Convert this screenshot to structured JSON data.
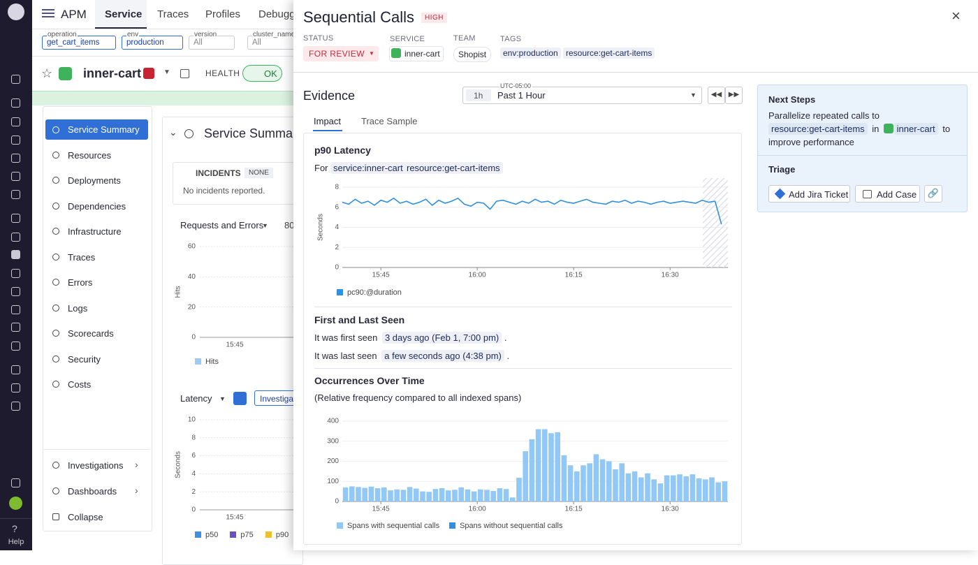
{
  "nav": {
    "help": "Help"
  },
  "topbar": {
    "product": "APM",
    "tabs": [
      "Service",
      "Traces",
      "Profiles",
      "Debugg"
    ]
  },
  "filters": [
    {
      "label": "operation",
      "value": "get_cart_items"
    },
    {
      "label": "env",
      "value": "production"
    },
    {
      "label": "version",
      "value": "All"
    },
    {
      "label": "cluster_name",
      "value": "All"
    }
  ],
  "service_header": {
    "name": "inner-cart",
    "health_label": "HEALTH",
    "health": "OK"
  },
  "side_menu": {
    "items": [
      "Service Summary",
      "Resources",
      "Deployments",
      "Dependencies",
      "Infrastructure",
      "Traces",
      "Errors",
      "Logs",
      "Scorecards",
      "Security",
      "Costs"
    ],
    "bottom": [
      "Investigations",
      "Dashboards",
      "Collapse"
    ]
  },
  "summary": {
    "title": "Service Summary",
    "incidents": {
      "label": "INCIDENTS",
      "badge": "NONE",
      "text": "No incidents reported."
    },
    "requests": {
      "selector": "Requests and Errors",
      "extra": "80",
      "y_label": "Hits",
      "ylim": [
        0,
        60
      ],
      "yticks": [
        0,
        20,
        40,
        60
      ],
      "xtick": "15:45",
      "legend": [
        {
          "name": "Hits",
          "color": "#9ccbf6"
        }
      ]
    },
    "latency": {
      "selector": "Latency",
      "button": "Investigat",
      "y_label": "Seconds",
      "ylim": [
        0,
        10
      ],
      "yticks": [
        0,
        2,
        4,
        6,
        8,
        10
      ],
      "xtick": "15:45",
      "legend": [
        {
          "name": "p50",
          "color": "#3d8fe0"
        },
        {
          "name": "p75",
          "color": "#6a4fc8"
        },
        {
          "name": "p90",
          "color": "#eec12c"
        }
      ]
    }
  },
  "panel": {
    "title": "Sequential Calls",
    "severity": "HIGH",
    "fields": {
      "status_label": "STATUS",
      "status": "FOR REVIEW",
      "service_label": "SERVICE",
      "service": "inner-cart",
      "team_label": "TEAM",
      "team": "Shopist",
      "tags_label": "TAGS",
      "tags": [
        "env:production",
        "resource:get-cart-items"
      ]
    },
    "evidence": {
      "title": "Evidence",
      "timezone": "UTC-05:00",
      "range_short": "1h",
      "range": "Past 1 Hour",
      "tabs": [
        "Impact",
        "Trace Sample"
      ]
    },
    "latency": {
      "title": "p90 Latency",
      "for": "For",
      "filters": [
        "service:inner-cart",
        "resource:get-cart-items"
      ],
      "chart": {
        "type": "line",
        "y_label": "Seconds",
        "x": [
          "15:39",
          "15:40",
          "15:41",
          "15:42",
          "15:43",
          "15:44",
          "15:45",
          "15:46",
          "15:47",
          "15:48",
          "15:49",
          "15:50",
          "15:51",
          "15:52",
          "15:53",
          "15:54",
          "15:55",
          "15:56",
          "15:57",
          "15:58",
          "15:59",
          "16:00",
          "16:01",
          "16:02",
          "16:03",
          "16:04",
          "16:05",
          "16:06",
          "16:07",
          "16:08",
          "16:09",
          "16:10",
          "16:11",
          "16:12",
          "16:13",
          "16:14",
          "16:15",
          "16:16",
          "16:17",
          "16:18",
          "16:19",
          "16:20",
          "16:21",
          "16:22",
          "16:23",
          "16:24",
          "16:25",
          "16:26",
          "16:27",
          "16:28",
          "16:29",
          "16:30",
          "16:31",
          "16:32",
          "16:33",
          "16:34",
          "16:35",
          "16:36",
          "16:37",
          "16:38"
        ],
        "series": [
          {
            "name": "pc90:@duration",
            "color": "#2f8fe0",
            "values": [
              6.5,
              6.3,
              6.8,
              6.4,
              6.6,
              6.2,
              6.7,
              6.5,
              6.9,
              6.4,
              6.6,
              6.3,
              6.5,
              6.8,
              6.2,
              6.7,
              6.4,
              6.6,
              6.9,
              6.3,
              6.1,
              6.5,
              6.4,
              5.8,
              6.6,
              6.7,
              6.5,
              6.3,
              6.6,
              6.4,
              6.8,
              6.5,
              6.6,
              6.3,
              6.7,
              6.5,
              6.4,
              6.6,
              6.8,
              6.5,
              6.4,
              6.3,
              6.6,
              6.5,
              6.7,
              6.4,
              6.6,
              6.5,
              6.3,
              6.5,
              6.6,
              6.4,
              6.5,
              6.6,
              6.5,
              6.4,
              6.7,
              6.5,
              6.6,
              4.3
            ]
          }
        ],
        "xlim": [
          "15:39",
          "16:39"
        ],
        "xticks": [
          "15:45",
          "16:00",
          "16:15",
          "16:30"
        ],
        "ylim": [
          0,
          8
        ],
        "yticks": [
          0,
          2,
          4,
          6,
          8
        ],
        "grid": true
      }
    },
    "seen": {
      "title": "First and Last Seen",
      "first_prefix": "It was first seen",
      "first": "3 days ago (Feb 1, 7:00 pm)",
      "last_prefix": "It was last seen",
      "last": "a few seconds ago (4:38 pm)",
      "end": "."
    },
    "occurrences": {
      "title": "Occurrences Over Time",
      "subtitle": "(Relative frequency compared to all indexed spans)",
      "chart": {
        "type": "bar",
        "stacked": true,
        "x": [
          "15:39",
          "15:40",
          "15:41",
          "15:42",
          "15:43",
          "15:44",
          "15:45",
          "15:46",
          "15:47",
          "15:48",
          "15:49",
          "15:50",
          "15:51",
          "15:52",
          "15:53",
          "15:54",
          "15:55",
          "15:56",
          "15:57",
          "15:58",
          "15:59",
          "16:00",
          "16:01",
          "16:02",
          "16:03",
          "16:04",
          "16:05",
          "16:06",
          "16:07",
          "16:08",
          "16:09",
          "16:10",
          "16:11",
          "16:12",
          "16:13",
          "16:14",
          "16:15",
          "16:16",
          "16:17",
          "16:18",
          "16:19",
          "16:20",
          "16:21",
          "16:22",
          "16:23",
          "16:24",
          "16:25",
          "16:26",
          "16:27",
          "16:28",
          "16:29",
          "16:30",
          "16:31",
          "16:32",
          "16:33",
          "16:34",
          "16:35",
          "16:36",
          "16:37",
          "16:38"
        ],
        "series": [
          {
            "name": "Spans with sequential calls",
            "color": "#92c8f5",
            "values": [
              70,
              75,
              72,
              68,
              74,
              66,
              70,
              55,
              60,
              58,
              72,
              64,
              50,
              48,
              62,
              66,
              55,
              58,
              70,
              60,
              50,
              60,
              58,
              52,
              66,
              62,
              20,
              118,
              250,
              310,
              360,
              360,
              340,
              345,
              230,
              180,
              150,
              180,
              190,
              235,
              210,
              200,
              160,
              190,
              140,
              150,
              120,
              140,
              110,
              90,
              130,
              130,
              135,
              125,
              135,
              115,
              110,
              120,
              95,
              100
            ]
          },
          {
            "name": "Spans without sequential calls",
            "color": "#2f8fe0",
            "values": [
              0,
              0,
              0,
              0,
              0,
              0,
              0,
              0,
              0,
              0,
              0,
              0,
              0,
              0,
              0,
              0,
              0,
              0,
              0,
              0,
              0,
              0,
              0,
              0,
              0,
              0,
              0,
              0,
              0,
              0,
              0,
              0,
              0,
              0,
              0,
              0,
              0,
              0,
              0,
              0,
              0,
              0,
              0,
              0,
              0,
              0,
              0,
              0,
              0,
              0,
              0,
              0,
              0,
              0,
              0,
              0,
              0,
              0,
              0,
              0
            ]
          }
        ],
        "xlim": [
          "15:39",
          "16:39"
        ],
        "xticks": [
          "15:45",
          "16:00",
          "16:15",
          "16:30"
        ],
        "ylim": [
          0,
          400
        ],
        "yticks": [
          0,
          100,
          200,
          300,
          400
        ],
        "grid": true
      }
    },
    "next_steps": {
      "title": "Next Steps",
      "line1": "Parallelize repeated calls to",
      "resource": "resource:get-cart-items",
      "in": "in",
      "service": "inner-cart",
      "to": "to",
      "line2": "improve performance"
    },
    "triage": {
      "title": "Triage",
      "buttons": [
        "Add Jira Ticket",
        "Add Case"
      ]
    }
  }
}
